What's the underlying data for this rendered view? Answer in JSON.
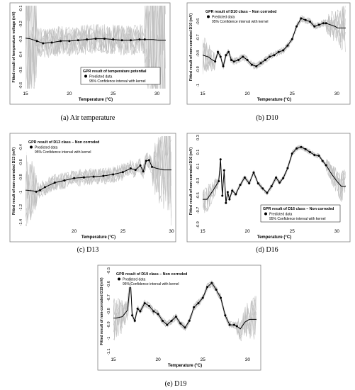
{
  "colors": {
    "predicted": "#000000",
    "interval": "#bdbdbd",
    "frame": "#7f7f7f"
  },
  "chart_data": [
    {
      "id": "a",
      "type": "line",
      "caption": "(a) Air temperature",
      "ylabel": "Fitted result of temperature voltage (mV)",
      "xlabel": "Temperature (°C)",
      "legend_title": "GPR result of temperature potential",
      "legend_items": [
        "Predicted data",
        "95% Confidence interval with kernel"
      ],
      "legend_position": "bottom-right",
      "xlim": [
        15,
        31
      ],
      "ylim": [
        -0.62,
        -0.08
      ],
      "xticks": [
        15,
        20,
        25,
        30
      ],
      "xtick_labels": [
        "15",
        "20",
        "25",
        "30"
      ],
      "yticks": [
        -0.1,
        -0.2,
        -0.3,
        -0.4,
        -0.5,
        -0.6
      ],
      "ytick_labels": [
        "-0.1",
        "-0.2",
        "-0.3",
        "-0.4",
        "-0.5",
        "-0.6"
      ],
      "band_halfwidth": 0.22,
      "points_range": [
        16.3,
        28.6
      ],
      "x": [
        14.8,
        15.5,
        16.3,
        17.0,
        18.0,
        19.0,
        20.0,
        21.0,
        22.0,
        23.0,
        24.0,
        25.0,
        26.0,
        27.0,
        28.0,
        28.6,
        29.5,
        30.2
      ],
      "y": [
        -0.29,
        -0.295,
        -0.31,
        -0.325,
        -0.32,
        -0.31,
        -0.31,
        -0.305,
        -0.3,
        -0.295,
        -0.295,
        -0.3,
        -0.305,
        -0.305,
        -0.3,
        -0.3,
        -0.3,
        -0.305
      ]
    },
    {
      "id": "b",
      "type": "line",
      "caption": "(b) D10",
      "ylabel": "Fitted result of non-corroded D10 (mV)",
      "xlabel": "Temperature (°C)",
      "legend_title": "GPR result of D10 class – Non corroded",
      "legend_items": [
        "Predicted data",
        "95% Confidence interval with kernel"
      ],
      "legend_position": "top-left",
      "xlim": [
        15,
        31
      ],
      "ylim": [
        -1.02,
        -0.5
      ],
      "xticks": [
        15,
        20,
        25,
        30
      ],
      "xtick_labels": [
        "15",
        "20",
        "25",
        "30"
      ],
      "yticks": [
        -0.6,
        -0.7,
        -0.8,
        -0.9,
        -1.0
      ],
      "ytick_labels": [
        "-0.6",
        "-0.7",
        "-0.8",
        "-0.9",
        "-1"
      ],
      "band_halfwidth": 0.05,
      "points_range": [
        16.4,
        28.8
      ],
      "x": [
        15.0,
        15.6,
        16.1,
        16.4,
        16.7,
        17.0,
        17.3,
        17.6,
        17.9,
        18.2,
        18.5,
        19.0,
        19.5,
        20.0,
        20.5,
        21.0,
        21.5,
        22.0,
        22.5,
        23.0,
        23.5,
        24.0,
        24.5,
        25.0,
        25.5,
        26.0,
        26.5,
        27.0,
        27.5,
        28.0,
        28.5,
        28.8,
        29.3,
        29.8,
        30.1
      ],
      "y": [
        -0.81,
        -0.82,
        -0.84,
        -0.85,
        -0.79,
        -0.82,
        -0.88,
        -0.81,
        -0.79,
        -0.84,
        -0.85,
        -0.84,
        -0.82,
        -0.84,
        -0.87,
        -0.88,
        -0.86,
        -0.84,
        -0.82,
        -0.81,
        -0.79,
        -0.78,
        -0.75,
        -0.71,
        -0.63,
        -0.58,
        -0.59,
        -0.6,
        -0.63,
        -0.62,
        -0.61,
        -0.61,
        -0.62,
        -0.63,
        -0.64
      ]
    },
    {
      "id": "c",
      "type": "line",
      "caption": "(c) D13",
      "ylabel": "Fitted result of non-corroded D13 (mV)",
      "xlabel": "Temperature (°C)",
      "legend_title": "GPR result of D13 class – Non corroded",
      "legend_items": [
        "Predicted data",
        "95% Confidence interval with kernel"
      ],
      "legend_position": "top-left",
      "xlim": [
        15,
        30
      ],
      "ylim": [
        -1.45,
        -0.25
      ],
      "xticks": [
        20,
        25,
        30
      ],
      "xtick_labels": [
        "20",
        "25",
        "30"
      ],
      "yticks": [
        -0.4,
        -0.6,
        -0.8,
        -1.0,
        -1.2,
        -1.4
      ],
      "ytick_labels": [
        "-0.4",
        "-0.6",
        "-0.8",
        "-1",
        "-1.2",
        "-1.4"
      ],
      "band_halfwidth": 0.25,
      "points_range": [
        16.1,
        28.0
      ],
      "x": [
        15.1,
        15.8,
        16.1,
        16.5,
        17.0,
        18.0,
        19.0,
        20.0,
        21.0,
        22.0,
        23.0,
        24.0,
        25.0,
        25.8,
        26.3,
        26.8,
        27.1,
        27.4,
        27.7,
        28.0,
        28.5,
        29.2
      ],
      "y": [
        -0.97,
        -0.98,
        -0.99,
        -0.97,
        -0.93,
        -0.87,
        -0.84,
        -0.81,
        -0.8,
        -0.79,
        -0.78,
        -0.76,
        -0.73,
        -0.68,
        -0.7,
        -0.64,
        -0.72,
        -0.58,
        -0.57,
        -0.66,
        -0.68,
        -0.7
      ]
    },
    {
      "id": "d",
      "type": "line",
      "caption": "(d) D16",
      "ylabel": "Fitted result of non-corroded D16 (mV)",
      "xlabel": "Temperature (°C)",
      "legend_title": "GPR result of D16 class – Non corroded",
      "legend_items": [
        "Predicted data",
        "95% Confidence interval with kernel"
      ],
      "legend_position": "bottom-right",
      "xlim": [
        15,
        31
      ],
      "ylim": [
        -0.92,
        0.32
      ],
      "xticks": [
        15,
        20,
        25,
        30
      ],
      "xtick_labels": [
        "15",
        "20",
        "25",
        "30"
      ],
      "yticks": [
        0.3,
        0.1,
        -0.1,
        -0.3,
        -0.5,
        -0.7,
        -0.9
      ],
      "ytick_labels": [
        "0.3",
        "0.1",
        "-0.1",
        "-0.3",
        "-0.5",
        "-0.7",
        "-0.9"
      ],
      "band_halfwidth": 0.08,
      "points_range": [
        16.8,
        28.8
      ],
      "x": [
        15.5,
        16.2,
        16.8,
        17.0,
        17.2,
        17.4,
        17.6,
        17.8,
        18.0,
        18.3,
        18.7,
        19.2,
        19.7,
        20.2,
        20.7,
        21.2,
        21.7,
        22.2,
        22.7,
        23.2,
        23.6,
        24.0,
        24.5,
        25.0,
        25.5,
        26.0,
        26.5,
        27.0,
        27.5,
        28.0,
        28.4,
        28.8,
        29.4,
        30.0,
        30.5
      ],
      "y": [
        -0.55,
        -0.42,
        -0.3,
        0.0,
        -0.5,
        -0.15,
        -0.6,
        -0.45,
        -0.55,
        -0.43,
        -0.48,
        -0.35,
        -0.25,
        -0.33,
        -0.18,
        -0.33,
        -0.4,
        -0.46,
        -0.37,
        -0.25,
        -0.32,
        -0.26,
        -0.12,
        0.08,
        0.15,
        0.17,
        0.14,
        0.1,
        0.06,
        0.05,
        -0.02,
        -0.08,
        -0.2,
        -0.3,
        -0.37
      ]
    },
    {
      "id": "e",
      "type": "line",
      "caption": "(e) D19",
      "ylabel": "Fitted result of non-corroded D19 (mV)",
      "xlabel": "Temperature (°C)",
      "legend_title": "GPR result of D19 class – Non corroded",
      "legend_items": [
        "Predicted data",
        "95% Confidence interval with kernel"
      ],
      "legend_position": "top-left",
      "xlim": [
        15,
        31
      ],
      "ylim": [
        -1.12,
        -0.48
      ],
      "xticks": [
        15,
        20,
        25,
        30
      ],
      "xtick_labels": [
        "15",
        "20",
        "25",
        "30"
      ],
      "yticks": [
        -0.5,
        -0.6,
        -0.7,
        -0.8,
        -0.9,
        -1.0,
        -1.1
      ],
      "ytick_labels": [
        "-0.5",
        "-0.6",
        "-0.7",
        "-0.8",
        "-0.9",
        "-1",
        "-1.1"
      ],
      "band_halfwidth": 0.06,
      "points_range": [
        16.9,
        28.8
      ],
      "x": [
        15.3,
        16.0,
        16.6,
        16.9,
        17.1,
        17.4,
        17.7,
        18.0,
        18.5,
        19.0,
        19.5,
        20.0,
        20.5,
        21.0,
        21.5,
        22.0,
        22.5,
        23.0,
        23.5,
        24.0,
        24.5,
        25.0,
        25.5,
        26.0,
        26.5,
        27.0,
        27.5,
        28.0,
        28.5,
        28.8,
        29.2,
        29.7,
        30.2
      ],
      "y": [
        -0.85,
        -0.84,
        -0.79,
        -0.56,
        -0.83,
        -0.87,
        -0.78,
        -0.8,
        -0.74,
        -0.76,
        -0.8,
        -0.82,
        -0.87,
        -0.9,
        -0.87,
        -0.84,
        -0.89,
        -0.92,
        -0.87,
        -0.77,
        -0.74,
        -0.7,
        -0.62,
        -0.59,
        -0.64,
        -0.7,
        -0.83,
        -0.9,
        -0.9,
        -0.91,
        -0.93,
        -0.88,
        -0.86
      ]
    }
  ]
}
